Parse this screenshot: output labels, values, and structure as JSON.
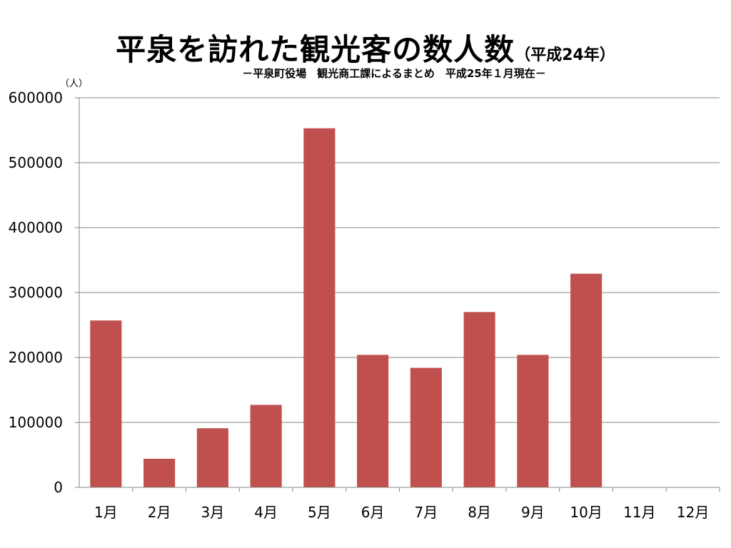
{
  "title": {
    "main": "平泉を訪れた観光客の数人数",
    "year": "（平成24年）"
  },
  "subtitle": "－平泉町役場　観光商工課によるまとめ　平成25年１月現在－",
  "unit_label": "（人）",
  "colors": {
    "bar": "#c0504d",
    "grid": "#868686",
    "axis": "#868686"
  },
  "chart_data": {
    "type": "bar",
    "title": "平泉を訪れた観光客の数人数（平成24年）",
    "categories": [
      "1月",
      "2月",
      "3月",
      "4月",
      "5月",
      "6月",
      "7月",
      "8月",
      "9月",
      "10月",
      "11月",
      "12月"
    ],
    "values": [
      257000,
      44000,
      91000,
      127000,
      553000,
      204000,
      184000,
      270000,
      204000,
      329000,
      null,
      null
    ],
    "ylabel": "（人）",
    "ylim": [
      0,
      600000
    ],
    "yticks": [
      0,
      100000,
      200000,
      300000,
      400000,
      500000,
      600000
    ],
    "ytick_labels": [
      "0",
      "100000",
      "200000",
      "300000",
      "400000",
      "500000",
      "600000"
    ],
    "grid": true,
    "legend": false
  }
}
